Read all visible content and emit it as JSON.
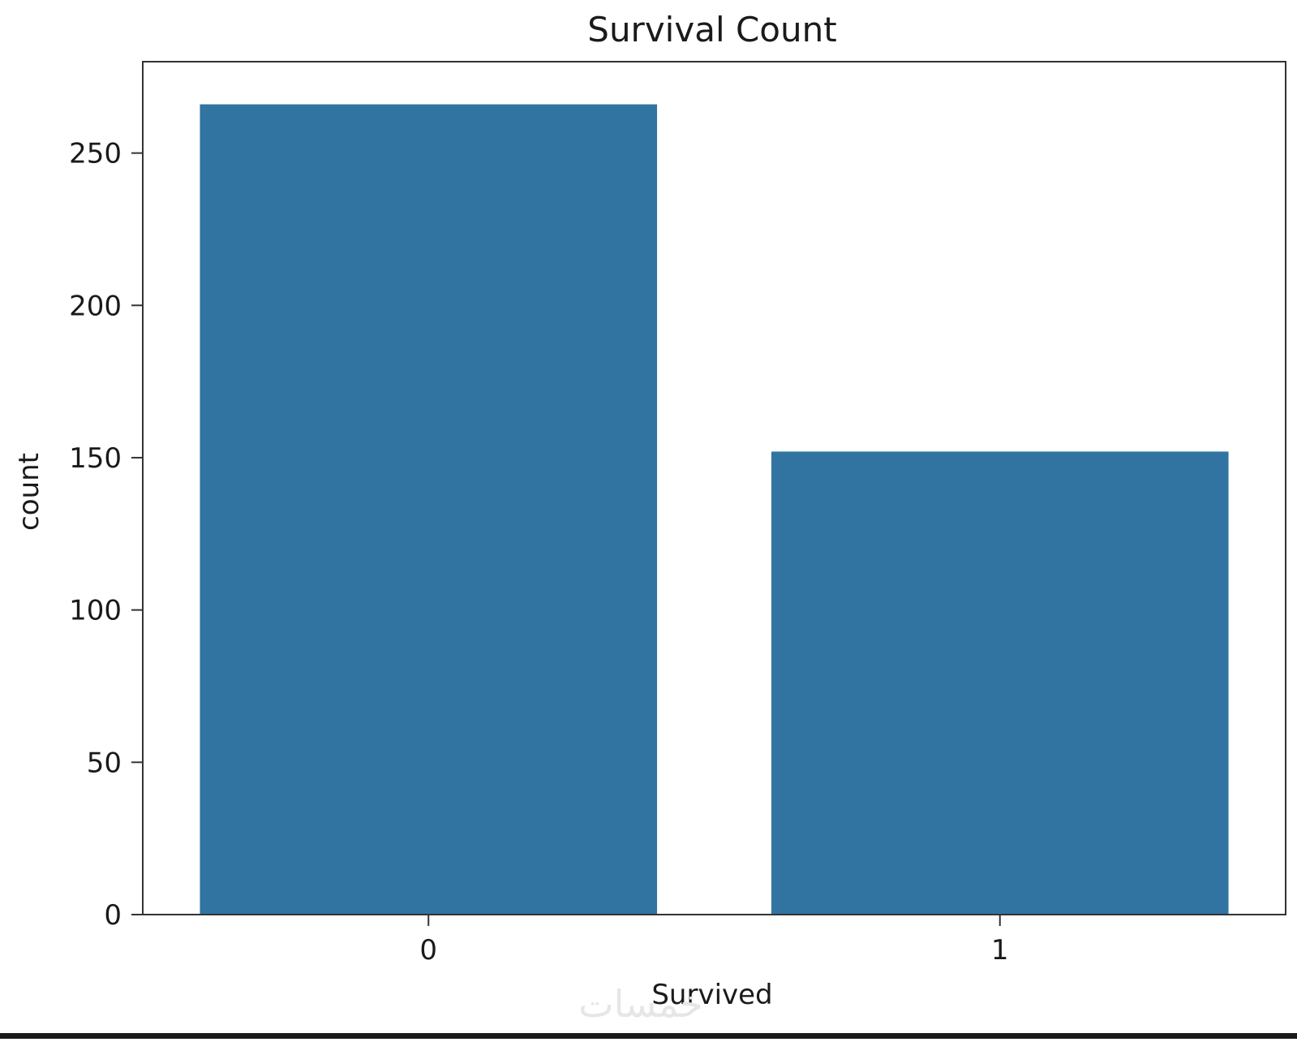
{
  "chart_data": {
    "type": "bar",
    "title": "Survival Count",
    "xlabel": "Survived",
    "ylabel": "count",
    "categories": [
      "0",
      "1"
    ],
    "values": [
      266,
      152
    ],
    "ylim": [
      0,
      280
    ],
    "yticks": [
      0,
      50,
      100,
      150,
      200,
      250
    ],
    "grid": false,
    "legend": "none"
  },
  "colors": {
    "bar": "#3274a1",
    "axes": "#333333",
    "text": "#1a1a1a"
  },
  "watermark": {
    "text": "خمسات",
    "color": "#e6e6e6"
  }
}
